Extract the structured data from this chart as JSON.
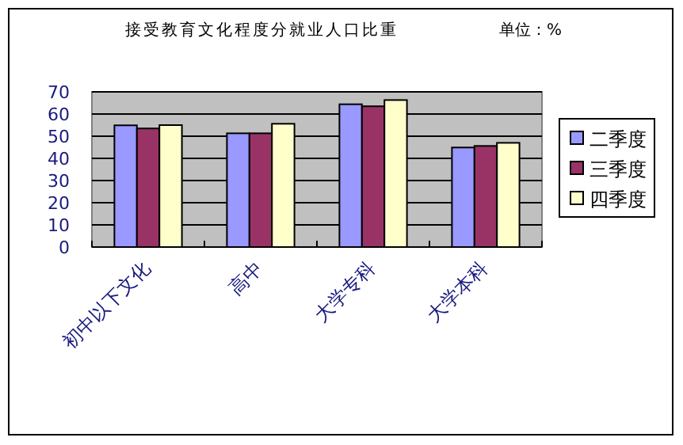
{
  "chart_data": {
    "type": "bar",
    "title": "接受教育文化程度分就业人口比重",
    "subtitle": "单位：%",
    "categories": [
      "初中以下文化",
      "高中",
      "大学专科",
      "大学本科"
    ],
    "series": [
      {
        "name": "二季度",
        "color": "#9999ff",
        "values": [
          54.9,
          51.3,
          64.4,
          44.9
        ]
      },
      {
        "name": "三季度",
        "color": "#993366",
        "values": [
          53.5,
          51.3,
          63.5,
          45.6
        ]
      },
      {
        "name": "四季度",
        "color": "#ffffcc",
        "values": [
          55,
          55.6,
          66.3,
          47
        ]
      }
    ],
    "ylim": [
      0,
      70
    ],
    "yticks": [
      0,
      10,
      20,
      30,
      40,
      50,
      60,
      70
    ],
    "grid": "y",
    "legend": "right"
  }
}
